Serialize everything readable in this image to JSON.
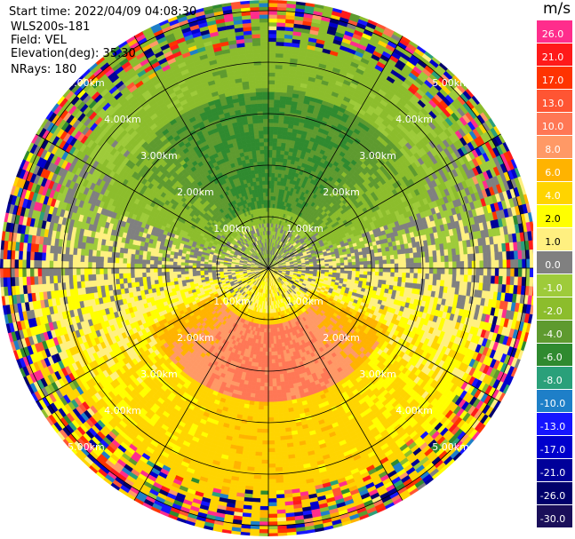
{
  "header": {
    "start_time": "Start time: 2022/04/09 04:08:30",
    "instrument": "WLS200s-181",
    "field": "Field: VEL",
    "elevation": "Elevation(deg): 35.30",
    "nrays": "NRays: 180"
  },
  "colorbar": {
    "title": "m/s",
    "ticks": [
      "26.0",
      "21.0",
      "17.0",
      "13.0",
      "10.0",
      "8.0",
      "6.0",
      "4.0",
      "2.0",
      "1.0",
      "0.0",
      "-1.0",
      "-2.0",
      "-4.0",
      "-6.0",
      "-8.0",
      "-10.0",
      "-13.0",
      "-17.0",
      "-21.0",
      "-26.0",
      "-30.0"
    ],
    "colors": [
      "#ff2d8c",
      "#ff1a1a",
      "#ff3300",
      "#ff5533",
      "#ff7755",
      "#ff9966",
      "#ffb300",
      "#ffd400",
      "#ffff00",
      "#fff080",
      "#808080",
      "#9ecb3a",
      "#8cbd2c",
      "#5e9a2f",
      "#2f8a2f",
      "#2aa07a",
      "#1e7fc8",
      "#1515ff",
      "#0000cc",
      "#000099",
      "#00006b",
      "#1a0f5a"
    ]
  },
  "chart_data": {
    "type": "heatmap",
    "projection": "polar PPI",
    "range_rings_km": [
      1.0,
      2.0,
      3.0,
      4.0,
      5.0
    ],
    "ring_labels": [
      "1.00km",
      "2.00km",
      "3.00km",
      "4.00km",
      "5.00km"
    ],
    "n_rays": 180,
    "max_range_km": 5.5,
    "value_range": [
      -30,
      26
    ],
    "units": "m/s",
    "pattern": {
      "description_of_field": "negative velocities upper half, positive lower half",
      "zones": [
        {
          "sector_deg": [
            200,
            340
          ],
          "range_km": [
            1.5,
            3.5
          ],
          "value": -6.0
        },
        {
          "sector_deg": [
            170,
            360
          ],
          "range_km": [
            0.3,
            4.5
          ],
          "value": -2.0
        },
        {
          "sector_deg": [
            20,
            160
          ],
          "range_km": [
            1.0,
            2.8
          ],
          "value": 8.0
        },
        {
          "sector_deg": [
            0,
            180
          ],
          "range_km": [
            0.3,
            4.5
          ],
          "value": 2.0
        },
        {
          "sector_deg": [
            0,
            360
          ],
          "range_km": [
            4.5,
            5.5
          ],
          "value": "noise"
        }
      ]
    }
  }
}
